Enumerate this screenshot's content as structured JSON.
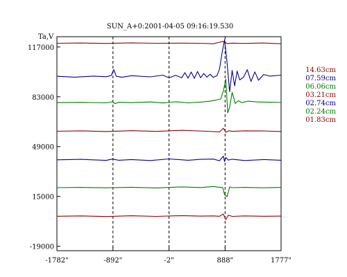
{
  "chart_data": {
    "type": "line",
    "title": "SUN_A+0:2001-04-05 09:16:19.530",
    "ylabel": "Ta,V",
    "xlim": [
      -1782,
      1777
    ],
    "ylim": [
      -22000,
      124000
    ],
    "x_ticks": [
      {
        "value": -1782,
        "label": "-1782\""
      },
      {
        "value": -892,
        "label": "-892\""
      },
      {
        "value": -2,
        "label": "-2\""
      },
      {
        "value": 888,
        "label": "888\""
      },
      {
        "value": 1777,
        "label": "1777\""
      }
    ],
    "y_ticks": [
      {
        "value": 117000,
        "label": "117000"
      },
      {
        "value": 83000,
        "label": "83000"
      },
      {
        "value": 49000,
        "label": "49000"
      },
      {
        "value": 15000,
        "label": "15000"
      },
      {
        "value": -19000,
        "label": "-19000"
      }
    ],
    "vlines": [
      -892,
      -2,
      888
    ],
    "legend_position": "right",
    "series": [
      {
        "name": "14.63cm",
        "color": "#8b0000",
        "x": [
          -1782,
          -1400,
          -1000,
          -600,
          -200,
          200,
          500,
          700,
          800,
          850,
          880,
          920,
          1000,
          1200,
          1500,
          1777
        ],
        "y": [
          119500,
          119700,
          119400,
          119800,
          119500,
          119600,
          119500,
          119200,
          120200,
          120800,
          120400,
          119300,
          119600,
          119400,
          119700,
          119200
        ]
      },
      {
        "name": "07.59cm",
        "color": "#00008b",
        "x": [
          -1782,
          -1500,
          -1200,
          -1000,
          -920,
          -880,
          -840,
          -750,
          -600,
          -300,
          -100,
          0,
          100,
          200,
          250,
          300,
          350,
          400,
          450,
          500,
          550,
          600,
          650,
          700,
          760,
          800,
          840,
          880,
          920,
          960,
          1000,
          1040,
          1080,
          1120,
          1180,
          1240,
          1300,
          1360,
          1420,
          1500,
          1600,
          1777
        ],
        "y": [
          97000,
          96400,
          97100,
          96700,
          97500,
          101500,
          97000,
          96300,
          97400,
          96600,
          97800,
          95900,
          97700,
          96000,
          99500,
          95700,
          99900,
          95600,
          100300,
          96000,
          98900,
          96400,
          98400,
          96200,
          97400,
          102000,
          113000,
          122000,
          106000,
          86500,
          101000,
          90500,
          100500,
          94500,
          96300,
          101500,
          93500,
          100000,
          94300,
          98200,
          97100,
          97800
        ]
      },
      {
        "name": "06.06cm",
        "color": "#007a00",
        "x": [
          -1782,
          -1400,
          -1000,
          -900,
          -860,
          -800,
          -600,
          -300,
          -100,
          100,
          300,
          500,
          650,
          750,
          820,
          860,
          900,
          930,
          960,
          1000,
          1050,
          1100,
          1150,
          1250,
          1400,
          1600,
          1777
        ],
        "y": [
          79000,
          79200,
          78900,
          79600,
          78300,
          79300,
          79000,
          79500,
          78800,
          79600,
          78900,
          79400,
          80000,
          80800,
          81500,
          87000,
          95000,
          72000,
          76000,
          86000,
          78500,
          80300,
          79000,
          80000,
          79500,
          79300,
          79100
        ]
      },
      {
        "name": "03.21cm",
        "color": "#8b0000",
        "x": [
          -1782,
          -1400,
          -1000,
          -600,
          -200,
          200,
          600,
          800,
          860,
          900,
          950,
          1000,
          1200,
          1500,
          1777
        ],
        "y": [
          59500,
          59800,
          59300,
          59900,
          59400,
          60100,
          59500,
          59000,
          61600,
          58800,
          59900,
          59400,
          59800,
          59700,
          59300
        ]
      },
      {
        "name": "02.74cm",
        "color": "#00008b",
        "x": [
          -1782,
          -1400,
          -1000,
          -900,
          -800,
          -600,
          -300,
          0,
          300,
          500,
          700,
          800,
          860,
          880,
          900,
          940,
          1000,
          1200,
          1500,
          1777
        ],
        "y": [
          40000,
          40300,
          39600,
          40500,
          39700,
          40200,
          39500,
          40600,
          39700,
          40300,
          40500,
          39400,
          42500,
          38800,
          41600,
          39800,
          40400,
          39500,
          40200,
          39700
        ]
      },
      {
        "name": "02.24cm",
        "color": "#007a00",
        "x": [
          -1782,
          -1400,
          -1000,
          -600,
          -200,
          200,
          500,
          700,
          800,
          850,
          880,
          920,
          960,
          1000,
          1200,
          1500,
          1777
        ],
        "y": [
          21000,
          21200,
          20900,
          21300,
          20800,
          21500,
          21100,
          21800,
          21300,
          21100,
          16200,
          14800,
          21500,
          21000,
          21200,
          20900,
          21200
        ]
      },
      {
        "name": "01.83cm",
        "color": "#8b0000",
        "x": [
          -1782,
          -1400,
          -1000,
          -600,
          -200,
          200,
          500,
          700,
          800,
          860,
          900,
          940,
          1000,
          1200,
          1500,
          1777
        ],
        "y": [
          1500,
          1700,
          1300,
          1800,
          1400,
          1900,
          1600,
          1700,
          1500,
          3000,
          -800,
          2300,
          1400,
          1700,
          1500,
          1600
        ]
      }
    ]
  }
}
